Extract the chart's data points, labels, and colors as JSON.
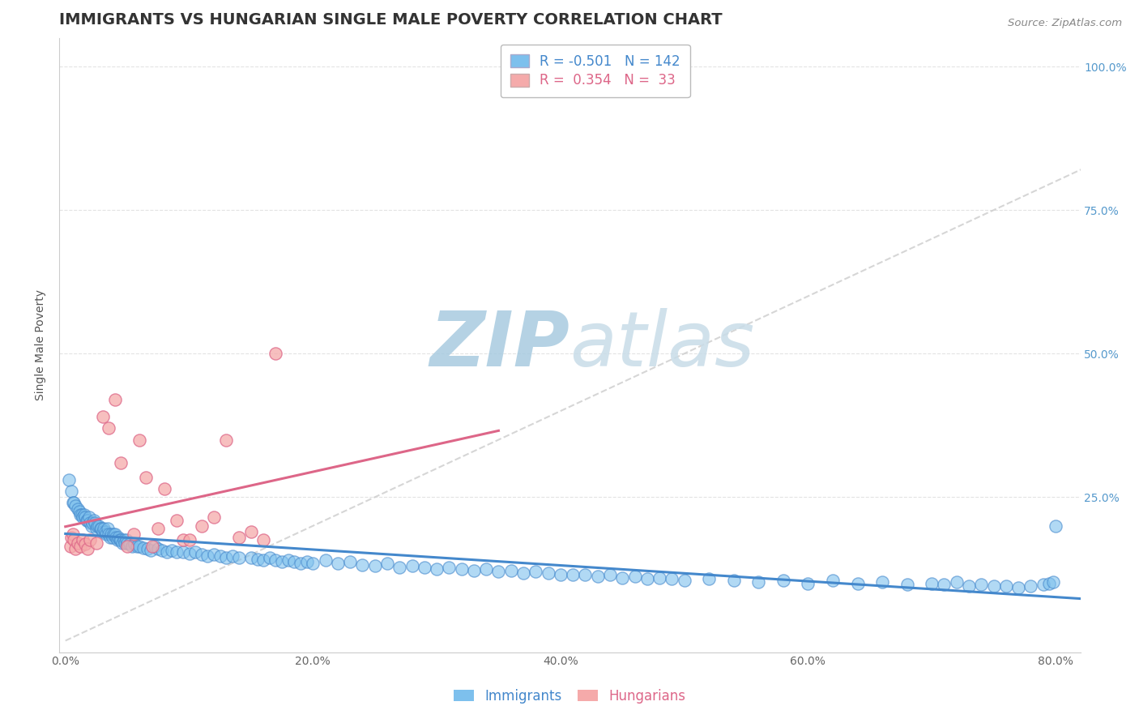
{
  "title": "IMMIGRANTS VS HUNGARIAN SINGLE MALE POVERTY CORRELATION CHART",
  "source_text": "Source: ZipAtlas.com",
  "ylabel": "Single Male Poverty",
  "xlim": [
    -0.005,
    0.82
  ],
  "ylim": [
    -0.02,
    1.05
  ],
  "xtick_labels": [
    "0.0%",
    "20.0%",
    "40.0%",
    "60.0%",
    "80.0%"
  ],
  "xtick_vals": [
    0.0,
    0.2,
    0.4,
    0.6,
    0.8
  ],
  "ytick_vals": [
    0.25,
    0.5,
    0.75,
    1.0
  ],
  "right_ytick_labels": [
    "25.0%",
    "50.0%",
    "75.0%",
    "100.0%"
  ],
  "immigrants_color": "#7DC0ED",
  "hungarians_color": "#F5AAAA",
  "immigrants_R": -0.501,
  "immigrants_N": 142,
  "hungarians_R": 0.354,
  "hungarians_N": 33,
  "immigrants_line_color": "#4488CC",
  "hungarians_line_color": "#DD6688",
  "diagonal_color": "#CCCCCC",
  "watermark_color": "#C8DFEF",
  "background_color": "#FFFFFF",
  "grid_color": "#DDDDDD",
  "title_fontsize": 14,
  "axis_fontsize": 10,
  "legend_fontsize": 12,
  "tick_fontsize": 10,
  "immigrants_x": [
    0.003,
    0.005,
    0.006,
    0.007,
    0.008,
    0.01,
    0.011,
    0.012,
    0.013,
    0.014,
    0.015,
    0.016,
    0.017,
    0.018,
    0.019,
    0.02,
    0.021,
    0.022,
    0.023,
    0.024,
    0.025,
    0.026,
    0.027,
    0.028,
    0.029,
    0.03,
    0.031,
    0.032,
    0.033,
    0.034,
    0.035,
    0.036,
    0.037,
    0.038,
    0.039,
    0.04,
    0.041,
    0.042,
    0.043,
    0.044,
    0.045,
    0.046,
    0.047,
    0.048,
    0.049,
    0.05,
    0.052,
    0.054,
    0.056,
    0.058,
    0.06,
    0.063,
    0.066,
    0.069,
    0.072,
    0.075,
    0.078,
    0.082,
    0.086,
    0.09,
    0.095,
    0.1,
    0.105,
    0.11,
    0.115,
    0.12,
    0.125,
    0.13,
    0.135,
    0.14,
    0.15,
    0.155,
    0.16,
    0.165,
    0.17,
    0.175,
    0.18,
    0.185,
    0.19,
    0.195,
    0.2,
    0.21,
    0.22,
    0.23,
    0.24,
    0.25,
    0.26,
    0.27,
    0.28,
    0.29,
    0.3,
    0.31,
    0.32,
    0.33,
    0.34,
    0.35,
    0.36,
    0.37,
    0.38,
    0.39,
    0.4,
    0.41,
    0.42,
    0.43,
    0.44,
    0.45,
    0.46,
    0.47,
    0.48,
    0.49,
    0.5,
    0.52,
    0.54,
    0.56,
    0.58,
    0.6,
    0.62,
    0.64,
    0.66,
    0.68,
    0.7,
    0.71,
    0.72,
    0.73,
    0.74,
    0.75,
    0.76,
    0.77,
    0.78,
    0.79,
    0.795,
    0.798,
    0.8
  ],
  "immigrants_y": [
    0.28,
    0.26,
    0.24,
    0.24,
    0.235,
    0.23,
    0.225,
    0.22,
    0.22,
    0.215,
    0.22,
    0.215,
    0.21,
    0.21,
    0.215,
    0.205,
    0.2,
    0.205,
    0.21,
    0.205,
    0.195,
    0.2,
    0.2,
    0.195,
    0.195,
    0.19,
    0.195,
    0.19,
    0.185,
    0.195,
    0.185,
    0.18,
    0.185,
    0.18,
    0.185,
    0.185,
    0.18,
    0.175,
    0.18,
    0.175,
    0.175,
    0.17,
    0.175,
    0.17,
    0.175,
    0.17,
    0.168,
    0.165,
    0.168,
    0.165,
    0.165,
    0.162,
    0.16,
    0.158,
    0.165,
    0.16,
    0.158,
    0.155,
    0.158,
    0.155,
    0.155,
    0.152,
    0.155,
    0.15,
    0.148,
    0.15,
    0.148,
    0.145,
    0.148,
    0.145,
    0.145,
    0.142,
    0.14,
    0.145,
    0.14,
    0.138,
    0.14,
    0.138,
    0.135,
    0.138,
    0.135,
    0.14,
    0.135,
    0.138,
    0.132,
    0.13,
    0.135,
    0.128,
    0.13,
    0.128,
    0.125,
    0.128,
    0.125,
    0.122,
    0.125,
    0.12,
    0.122,
    0.118,
    0.12,
    0.118,
    0.115,
    0.115,
    0.115,
    0.112,
    0.115,
    0.11,
    0.112,
    0.108,
    0.11,
    0.108,
    0.105,
    0.108,
    0.105,
    0.102,
    0.105,
    0.1,
    0.105,
    0.1,
    0.102,
    0.098,
    0.1,
    0.098,
    0.102,
    0.095,
    0.098,
    0.095,
    0.095,
    0.092,
    0.095,
    0.098,
    0.1,
    0.102,
    0.2
  ],
  "hungarians_x": [
    0.004,
    0.005,
    0.006,
    0.007,
    0.008,
    0.01,
    0.012,
    0.014,
    0.016,
    0.018,
    0.02,
    0.025,
    0.03,
    0.035,
    0.04,
    0.045,
    0.05,
    0.055,
    0.06,
    0.065,
    0.07,
    0.075,
    0.08,
    0.09,
    0.095,
    0.1,
    0.11,
    0.12,
    0.13,
    0.14,
    0.15,
    0.16,
    0.17
  ],
  "hungarians_y": [
    0.165,
    0.18,
    0.185,
    0.175,
    0.16,
    0.17,
    0.165,
    0.175,
    0.168,
    0.16,
    0.175,
    0.17,
    0.39,
    0.37,
    0.42,
    0.31,
    0.165,
    0.185,
    0.35,
    0.285,
    0.165,
    0.195,
    0.265,
    0.21,
    0.175,
    0.175,
    0.2,
    0.215,
    0.35,
    0.18,
    0.19,
    0.175,
    0.5
  ]
}
